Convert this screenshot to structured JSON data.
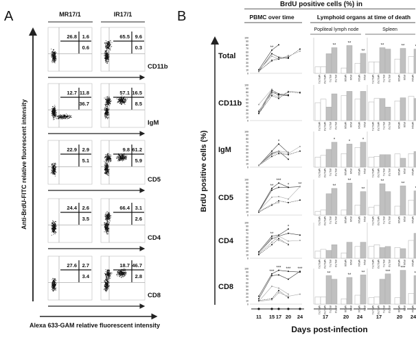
{
  "panelA": {
    "letter": "A",
    "columns": [
      "MR17/1",
      "IR17/1"
    ],
    "ylabel": "Anti-BrdU-FITC relative fluorescent intensity",
    "xlabel": "Alexa 633-GAM relative fluorescent intensity",
    "rows": [
      {
        "marker": "CD11b",
        "plots": [
          [
            "26.8",
            "1.6",
            "0.6"
          ],
          [
            "65.5",
            "9.6",
            "0.3"
          ]
        ]
      },
      {
        "marker": "IgM",
        "plots": [
          [
            "12.7",
            "11.8",
            "36.7"
          ],
          [
            "57.1",
            "16.5",
            "8.5"
          ]
        ]
      },
      {
        "marker": "CD5",
        "plots": [
          [
            "22.9",
            "2.9",
            "5.1"
          ],
          [
            "9.8",
            "61.2",
            "5.9"
          ]
        ]
      },
      {
        "marker": "CD4",
        "plots": [
          [
            "24.4",
            "2.6",
            "3.5"
          ],
          [
            "66.4",
            "3.1",
            "2.6"
          ]
        ]
      },
      {
        "marker": "CD8",
        "plots": [
          [
            "27.6",
            "2.7",
            "3.4"
          ],
          [
            "18.7",
            "46.7",
            "2.8"
          ]
        ]
      }
    ]
  },
  "panelB": {
    "letter": "B",
    "title": "BrdU positive cells (%) in",
    "pbmc_header": "PBMC over time",
    "organs_header": "Lymphoid organs at time of death",
    "ln_header": "Popliteal lymph node",
    "spleen_header": "Spleen",
    "ylabel": "BrdU positive cells (%)",
    "xlabel": "Days post-infection",
    "day_ticks": [
      "11",
      "15",
      "17",
      "20",
      "24"
    ],
    "group_ticks": [
      "17",
      "20",
      "24"
    ],
    "colors": {
      "mr_bar": "#ffffff",
      "ir_bar": "#c0c0c0",
      "line_dark": "#333333",
      "line_light": "#aaaaaa"
    }
  },
  "chart_data": [
    {
      "type": "line",
      "x": [
        11,
        15,
        17,
        20,
        24
      ],
      "ylim": [
        0,
        100
      ],
      "yticks": [
        0,
        10,
        20,
        30,
        40,
        50,
        60,
        70,
        80,
        90,
        100
      ],
      "rows": [
        {
          "marker": "Total",
          "series": [
            [
              10,
              65,
              80,
              null,
              null
            ],
            [
              5,
              55,
              45,
              42,
              null
            ],
            [
              8,
              48,
              40,
              50,
              null
            ],
            [
              6,
              35,
              40,
              45,
              68
            ],
            [
              5,
              38,
              42,
              48,
              62
            ]
          ],
          "stars": [
            null,
            "**",
            null,
            null,
            null
          ]
        },
        {
          "marker": "CD11b",
          "series": [
            [
              20,
              80,
              72,
              70,
              null
            ],
            [
              25,
              85,
              75,
              72,
              null
            ],
            [
              28,
              75,
              65,
              82,
              80
            ],
            [
              20,
              70,
              62,
              80,
              78
            ],
            [
              45,
              88,
              68,
              null,
              null
            ]
          ],
          "stars": [
            null,
            null,
            null,
            null,
            null
          ]
        },
        {
          "marker": "IgM",
          "series": [
            [
              5,
              45,
              65,
              40,
              null
            ],
            [
              5,
              38,
              45,
              22,
              null
            ],
            [
              5,
              35,
              42,
              38,
              58
            ],
            [
              5,
              30,
              38,
              35,
              45
            ],
            [
              5,
              40,
              45,
              42,
              null
            ]
          ],
          "stars": [
            null,
            null,
            "*",
            null,
            null
          ]
        },
        {
          "marker": "CD5",
          "series": [
            [
              12,
              75,
              90,
              78,
              null
            ],
            [
              10,
              70,
              78,
              78,
              80
            ],
            [
              12,
              50,
              52,
              45,
              80
            ],
            [
              8,
              28,
              40,
              35,
              42
            ],
            [
              10,
              30,
              35,
              null,
              null
            ]
          ],
          "stars": [
            null,
            "**",
            "***",
            "*",
            "**"
          ]
        },
        {
          "marker": "CD4",
          "series": [
            [
              18,
              62,
              65,
              82,
              null
            ],
            [
              15,
              55,
              62,
              70,
              65
            ],
            [
              12,
              45,
              62,
              48,
              50
            ],
            [
              10,
              38,
              55,
              38,
              null
            ],
            [
              15,
              58,
              50,
              40,
              null
            ]
          ],
          "stars": [
            null,
            "**",
            null,
            "*",
            null
          ]
        },
        {
          "marker": "CD8",
          "series": [
            [
              22,
              85,
              95,
              92,
              90
            ],
            [
              15,
              80,
              82,
              70,
              92
            ],
            [
              8,
              50,
              45,
              28,
              null
            ],
            [
              10,
              15,
              38,
              18,
              null
            ],
            [
              8,
              12,
              32,
              22,
              28
            ]
          ],
          "stars": [
            null,
            "***",
            "***",
            "***",
            "***"
          ]
        }
      ]
    },
    {
      "type": "bar",
      "categories": [
        "MR17/1",
        "MR17/2",
        "IR17/1",
        "IR17/2",
        "MR20",
        "IR20",
        "MR24",
        "IR24"
      ],
      "groups": [
        "17",
        "17",
        "17",
        "17",
        "20",
        "20",
        "24",
        "24"
      ],
      "ylim": [
        0,
        100
      ],
      "popliteal_lymph_node": [
        {
          "marker": "Total",
          "values": [
            18,
            18,
            55,
            72,
            15,
            78,
            28,
            56
          ],
          "stars": [
            "",
            "",
            "",
            "**",
            "",
            "**",
            "",
            "**"
          ]
        },
        {
          "marker": "CD11b",
          "values": [
            50,
            60,
            38,
            75,
            70,
            82,
            60,
            82
          ],
          "stars": [
            "",
            "",
            "",
            "",
            "",
            "",
            "",
            ""
          ]
        },
        {
          "marker": "IgM",
          "values": [
            28,
            33,
            50,
            70,
            38,
            65,
            55,
            70
          ],
          "stars": [
            "",
            "",
            "",
            "*",
            "",
            "*",
            "",
            "*"
          ]
        },
        {
          "marker": "CD5",
          "values": [
            10,
            14,
            60,
            75,
            14,
            90,
            28,
            66
          ],
          "stars": [
            "",
            "",
            "",
            "**",
            "",
            "**",
            "",
            "**"
          ]
        },
        {
          "marker": "CD4",
          "values": [
            20,
            25,
            22,
            38,
            15,
            45,
            33,
            45
          ],
          "stars": [
            "",
            "",
            "",
            "",
            "",
            "",
            "",
            ""
          ]
        },
        {
          "marker": "CD8",
          "values": [
            20,
            20,
            80,
            70,
            15,
            75,
            25,
            82
          ],
          "stars": [
            "",
            "",
            "**",
            "",
            "",
            "**",
            "",
            "**"
          ]
        }
      ],
      "spleen": [
        {
          "marker": "Total",
          "values": [
            32,
            32,
            72,
            68,
            40,
            70,
            47,
            68
          ],
          "stars": [
            "",
            "",
            "**",
            "",
            "",
            "**",
            "",
            "**"
          ]
        },
        {
          "marker": "CD11b",
          "values": [
            52,
            62,
            62,
            38,
            55,
            64,
            68,
            62
          ],
          "stars": [
            "",
            "",
            "",
            "",
            "",
            "",
            "",
            ""
          ]
        },
        {
          "marker": "IgM",
          "values": [
            28,
            30,
            35,
            35,
            37,
            25,
            38,
            44
          ],
          "stars": [
            "",
            "",
            "",
            "",
            "",
            "",
            "",
            ""
          ]
        },
        {
          "marker": "CD5",
          "values": [
            22,
            27,
            88,
            66,
            25,
            82,
            42,
            68
          ],
          "stars": [
            "",
            "",
            "**",
            "",
            "",
            "**",
            "",
            "**"
          ]
        },
        {
          "marker": "CD4",
          "values": [
            33,
            38,
            30,
            33,
            30,
            27,
            50,
            70
          ],
          "stars": [
            "",
            "",
            "",
            "",
            "",
            "",
            "",
            ""
          ]
        },
        {
          "marker": "CD8",
          "values": [
            18,
            20,
            70,
            85,
            18,
            95,
            30,
            80
          ],
          "stars": [
            "",
            "",
            "",
            "***",
            "",
            "***",
            "",
            "***"
          ]
        }
      ]
    }
  ]
}
